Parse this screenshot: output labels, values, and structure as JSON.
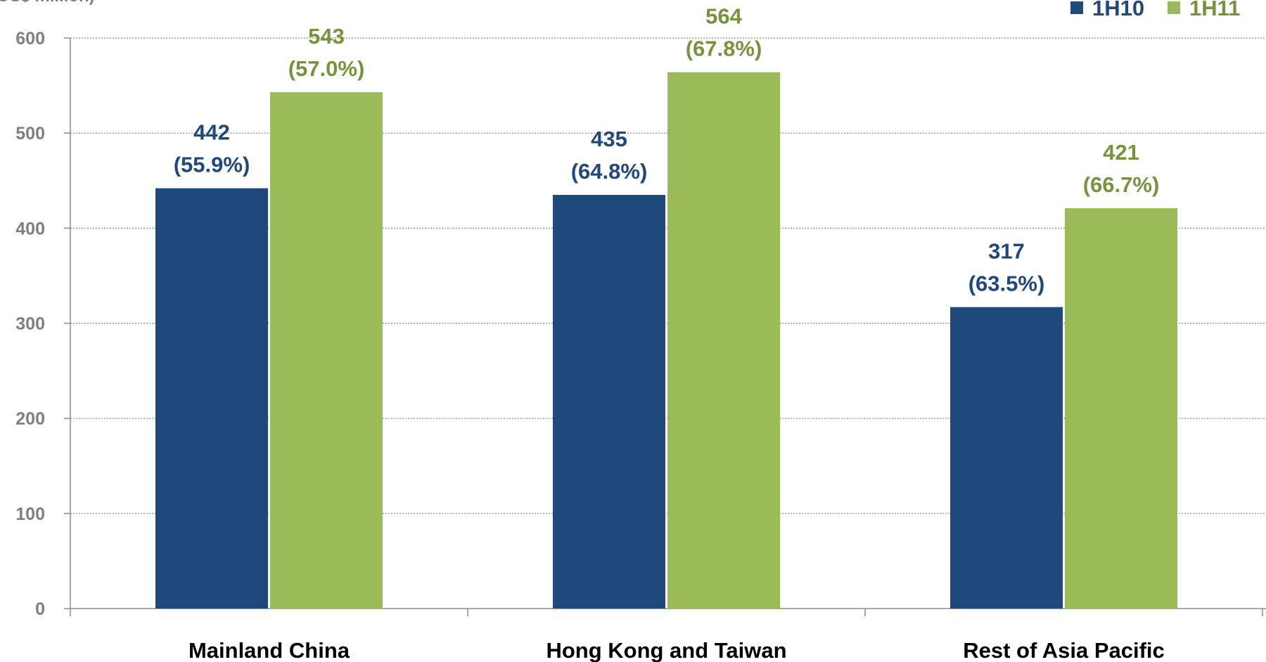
{
  "chart_data": {
    "type": "bar",
    "title": "",
    "xlabel": "",
    "ylabel": "",
    "y_unit_fragment": "(US$ million)",
    "categories": [
      "Mainland China",
      "Hong Kong and Taiwan",
      "Rest of Asia Pacific"
    ],
    "series": [
      {
        "name": "1H10",
        "color": "#1f497d",
        "values": [
          442,
          435,
          317
        ],
        "percent_labels": [
          "(55.9%)",
          "(64.8%)",
          "(63.5%)"
        ]
      },
      {
        "name": "1H11",
        "color": "#9bbb59",
        "label_color": "#77933c",
        "values": [
          543,
          564,
          421
        ],
        "percent_labels": [
          "(57.0%)",
          "(67.8%)",
          "(66.7%)"
        ]
      }
    ],
    "ylim": [
      0,
      600
    ],
    "yticks": [
      0,
      100,
      200,
      300,
      400,
      500,
      600
    ],
    "grid": true,
    "legend_position": "top-right"
  }
}
